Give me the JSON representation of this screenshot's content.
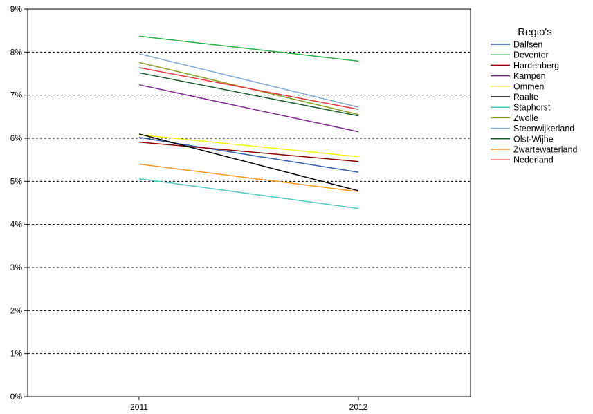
{
  "chart_data": {
    "type": "line",
    "title": "",
    "xlabel": "",
    "ylabel": "",
    "categories": [
      "2011",
      "2012"
    ],
    "ylim": [
      0,
      9
    ],
    "yticks": [
      "0%",
      "1%",
      "2%",
      "3%",
      "4%",
      "5%",
      "6%",
      "7%",
      "8%",
      "9%"
    ],
    "grid": "horizontal dashed",
    "legend": {
      "title": "Regio's",
      "placement": "right"
    },
    "series": [
      {
        "name": "Dalfsen",
        "color": "#2e5ea8",
        "values": [
          6.02,
          5.21
        ]
      },
      {
        "name": "Deventer",
        "color": "#27b046",
        "values": [
          8.37,
          7.79
        ]
      },
      {
        "name": "Hardenberg",
        "color": "#8b0000",
        "values": [
          5.91,
          5.46
        ]
      },
      {
        "name": "Kampen",
        "color": "#7b2a8a",
        "values": [
          7.24,
          6.15
        ]
      },
      {
        "name": "Ommen",
        "color": "#f2f20a",
        "values": [
          6.08,
          5.57
        ]
      },
      {
        "name": "Raalte",
        "color": "#000000",
        "values": [
          6.1,
          4.78
        ]
      },
      {
        "name": "Staphorst",
        "color": "#4ec5c1",
        "values": [
          5.06,
          4.37
        ]
      },
      {
        "name": "Zwolle",
        "color": "#8a9a1a",
        "values": [
          7.76,
          6.55
        ]
      },
      {
        "name": "Steenwijkerland",
        "color": "#7fa6d0",
        "values": [
          7.96,
          6.72
        ]
      },
      {
        "name": "Olst-Wijhe",
        "color": "#1a5c2e",
        "values": [
          7.52,
          6.52
        ]
      },
      {
        "name": "Zwartewaterland",
        "color": "#f39622",
        "values": [
          5.4,
          4.76
        ]
      },
      {
        "name": "Nederland",
        "color": "#e8323a",
        "values": [
          7.64,
          6.67
        ]
      }
    ]
  }
}
